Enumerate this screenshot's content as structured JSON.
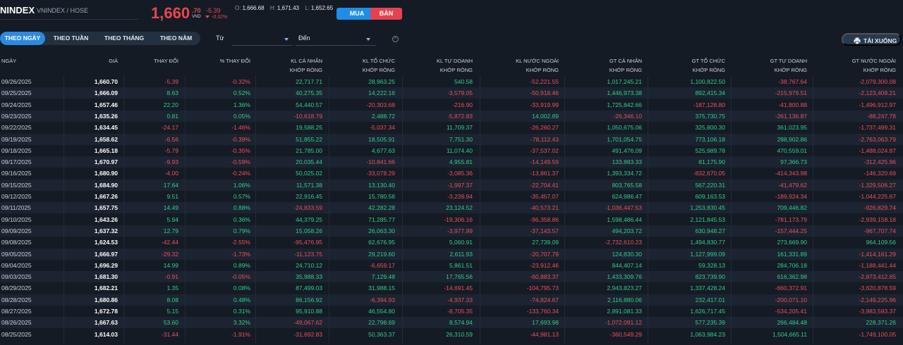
{
  "header": {
    "ticker": "NINDEX",
    "exchange": "VNINDEX / HOSE",
    "price_int": "1,660",
    "price_dec": ".70",
    "currency": "VND",
    "change_abs": "-5.39",
    "change_pct": "-0.32%",
    "open_label": "O:",
    "open": "1,666.68",
    "high_label": "H:",
    "high": "1,671.43",
    "low_label": "L:",
    "low": "1,652.65",
    "buy_label": "MUA",
    "sell_label": "BÁN"
  },
  "filters": {
    "tabs": [
      "THEO NGÀY",
      "THEO TUẦN",
      "THEO THÁNG",
      "THEO NĂM"
    ],
    "active_tab": 0,
    "from_label": "Từ",
    "to_label": "Đến",
    "download_label": "TẢI XUỐNG"
  },
  "colors": {
    "up": "#2fd08a",
    "down": "#ef4f5a",
    "accent": "#2b8ae0"
  },
  "table": {
    "headers": [
      [
        "NGÀY"
      ],
      [
        "GIÁ"
      ],
      [
        "THAY ĐỔI"
      ],
      [
        "% THAY ĐỔI"
      ],
      [
        "KL CÁ NHÂN",
        "KHỚP RÒNG"
      ],
      [
        "KL TỔ CHỨC",
        "KHỚP RÒNG"
      ],
      [
        "KL TỰ DOANH",
        "KHỚP RÒNG"
      ],
      [
        "KL NƯỚC NGOÀI",
        "KHỚP RÒNG"
      ],
      [
        "GT CÁ NHÂN",
        "KHỚP RÒNG"
      ],
      [
        "GT TỔ CHỨC",
        "KHỚP RÒNG"
      ],
      [
        "GT TỰ DOANH",
        "KHỚP RÒNG"
      ],
      [
        "GT NƯỚC NGOÀI",
        "KHỚP RÒNG"
      ]
    ],
    "rows": [
      [
        "09/26/2025",
        "1,660.70",
        "-5.39",
        "-0.32%",
        "22,717.71",
        "28,963.25",
        "540.58",
        "-52,221.55",
        "1,017,245.21",
        "1,100,822.50",
        "-38,767.64",
        "-2,079,300.08"
      ],
      [
        "09/25/2025",
        "1,666.09",
        "8.63",
        "0.52%",
        "40,275.35",
        "14,222.16",
        "-3,579.05",
        "-50,918.46",
        "1,446,973.38",
        "892,415.34",
        "-215,979.51",
        "-2,123,409.21"
      ],
      [
        "09/24/2025",
        "1,657.46",
        "22.20",
        "1.36%",
        "54,440.57",
        "-20,303.68",
        "-216.90",
        "-33,919.99",
        "1,725,842.66",
        "-187,128.80",
        "-41,800.88",
        "-1,496,912.97"
      ],
      [
        "09/23/2025",
        "1,635.26",
        "0.81",
        "0.05%",
        "-10,618.79",
        "2,488.72",
        "-5,872.83",
        "14,002.89",
        "-26,346.10",
        "375,730.75",
        "-261,136.87",
        "-88,247.78"
      ],
      [
        "09/22/2025",
        "1,634.45",
        "-24.17",
        "-1.46%",
        "19,588.25",
        "-5,037.34",
        "11,709.37",
        "-26,260.27",
        "1,050,675.06",
        "325,800.30",
        "361,023.95",
        "-1,737,499.31"
      ],
      [
        "09/19/2025",
        "1,658.62",
        "-6.56",
        "-0.39%",
        "51,855.22",
        "18,505.91",
        "7,751.30",
        "-78,112.43",
        "1,701,054.75",
        "773,106.18",
        "288,902.86",
        "-2,763,063.79"
      ],
      [
        "09/18/2025",
        "1,665.18",
        "-5.79",
        "-0.35%",
        "21,785.00",
        "4,677.63",
        "11,074.40",
        "-37,537.02",
        "491,476.09",
        "525,989.78",
        "470,559.01",
        "-1,488,024.87"
      ],
      [
        "09/17/2025",
        "1,670.97",
        "-9.93",
        "-0.59%",
        "20,035.44",
        "-10,841.66",
        "4,955.81",
        "-14,149.59",
        "133,883.33",
        "81,175.90",
        "97,366.73",
        "-312,425.96"
      ],
      [
        "09/16/2025",
        "1,680.90",
        "-4.00",
        "-0.24%",
        "50,025.02",
        "-33,078.29",
        "-3,085.36",
        "-13,861.37",
        "1,393,334.72",
        "-832,670.05",
        "-414,343.98",
        "-146,320.69"
      ],
      [
        "09/15/2025",
        "1,684.90",
        "17.64",
        "1.06%",
        "11,571.38",
        "13,130.40",
        "-1,997.37",
        "-22,704.41",
        "803,765.58",
        "567,220.31",
        "-41,479.62",
        "-1,329,506.27"
      ],
      [
        "09/12/2025",
        "1,667.26",
        "9.51",
        "0.57%",
        "22,916.45",
        "15,780.56",
        "-3,239.94",
        "-35,457.07",
        "624,986.47",
        "609,163.53",
        "-189,924.34",
        "-1,044,225.67"
      ],
      [
        "09/11/2025",
        "1,657.75",
        "14.49",
        "0.88%",
        "-24,833.59",
        "42,282.28",
        "23,124.52",
        "-40,573.21",
        "-1,036,447.53",
        "1,253,830.45",
        "709,446.82",
        "-926,829.74"
      ],
      [
        "09/10/2025",
        "1,643.26",
        "5.94",
        "0.36%",
        "44,379.25",
        "71,285.77",
        "-19,306.16",
        "-96,358.86",
        "1,598,486.44",
        "2,121,845.53",
        "-781,173.79",
        "-2,939,158.18"
      ],
      [
        "09/09/2025",
        "1,637.32",
        "12.79",
        "0.79%",
        "15,058.26",
        "26,063.30",
        "-3,977.99",
        "-37,143.57",
        "494,203.72",
        "630,948.27",
        "-157,444.25",
        "-967,707.74"
      ],
      [
        "09/08/2025",
        "1,624.53",
        "-42.44",
        "-2.55%",
        "-95,476.95",
        "62,676.95",
        "5,060.91",
        "27,739.09",
        "-2,732,610.23",
        "1,494,830.77",
        "273,669.90",
        "964,109.56"
      ],
      [
        "09/05/2025",
        "1,666.97",
        "-29.32",
        "-1.73%",
        "-11,123.75",
        "29,219.60",
        "2,611.93",
        "-20,707.79",
        "124,830.30",
        "1,127,999.09",
        "161,331.89",
        "-1,414,161.29"
      ],
      [
        "09/04/2025",
        "1,696.29",
        "14.99",
        "0.89%",
        "24,710.12",
        "-6,659.17",
        "5,861.51",
        "-23,912.46",
        "844,407.14",
        "59,328.13",
        "284,706.18",
        "-1,188,441.44"
      ],
      [
        "09/03/2025",
        "1,681.30",
        "-0.91",
        "-0.05%",
        "35,988.33",
        "7,129.48",
        "17,765.56",
        "-60,883.37",
        "1,433,309.76",
        "823,739.90",
        "616,362.98",
        "-2,873,412.65"
      ],
      [
        "08/29/2025",
        "1,682.21",
        "1.35",
        "0.08%",
        "87,499.03",
        "31,988.15",
        "-14,691.45",
        "-104,795.73",
        "2,943,823.27",
        "1,337,428.24",
        "-660,372.91",
        "-3,620,878.59"
      ],
      [
        "08/28/2025",
        "1,680.86",
        "8.08",
        "0.48%",
        "86,156.92",
        "-6,394.93",
        "-4,937.33",
        "-74,824.67",
        "2,116,880.06",
        "232,417.01",
        "-200,071.10",
        "-2,149,225.96"
      ],
      [
        "08/27/2025",
        "1,672.78",
        "5.15",
        "0.31%",
        "95,910.88",
        "46,554.80",
        "-8,705.35",
        "-133,760.34",
        "2,891,081.33",
        "1,626,717.45",
        "-534,205.41",
        "-3,983,593.37"
      ],
      [
        "08/26/2025",
        "1,667.63",
        "53.60",
        "3.32%",
        "-49,067.62",
        "22,798.69",
        "8,574.94",
        "17,693.98",
        "-1,072,091.12",
        "577,235.39",
        "266,484.48",
        "228,371.26"
      ],
      [
        "08/25/2025",
        "1,614.03",
        "-31.44",
        "-1.91%",
        "-31,692.83",
        "50,363.37",
        "26,310.59",
        "-44,981.13",
        "-360,549.29",
        "1,063,984.23",
        "1,504,665.11",
        "-1,749,100.05"
      ]
    ]
  }
}
